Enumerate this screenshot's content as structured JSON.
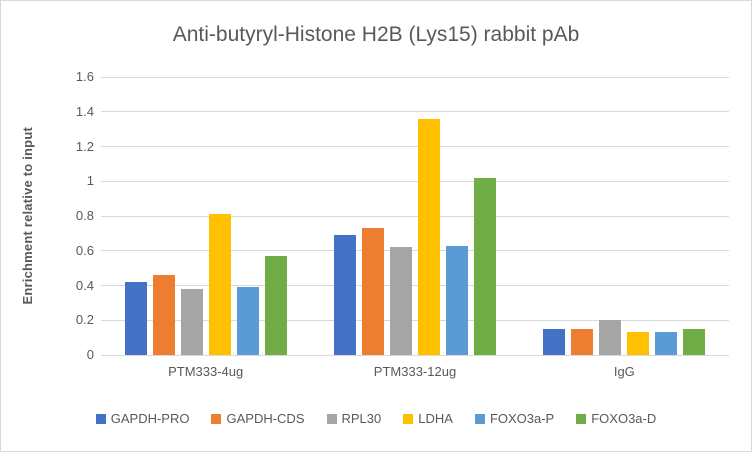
{
  "chart_data": {
    "type": "bar",
    "title": "Anti-butyryl-Histone H2B (Lys15) rabbit pAb",
    "xlabel": "",
    "ylabel": "Enrichment relative to input",
    "categories": [
      "PTM333-4ug",
      "PTM333-12ug",
      "IgG"
    ],
    "series": [
      {
        "name": "GAPDH-PRO",
        "color": "#4472C4",
        "values": [
          0.42,
          0.69,
          0.15
        ]
      },
      {
        "name": "GAPDH-CDS",
        "color": "#ED7D31",
        "values": [
          0.46,
          0.73,
          0.15
        ]
      },
      {
        "name": "RPL30",
        "color": "#A5A5A5",
        "values": [
          0.38,
          0.62,
          0.2
        ]
      },
      {
        "name": "LDHA",
        "color": "#FFC000",
        "values": [
          0.81,
          1.36,
          0.13
        ]
      },
      {
        "name": "FOXO3a-P",
        "color": "#5B9BD5",
        "values": [
          0.39,
          0.63,
          0.13
        ]
      },
      {
        "name": "FOXO3a-D",
        "color": "#70AD47",
        "values": [
          0.57,
          1.02,
          0.15
        ]
      }
    ],
    "ylim": [
      0,
      1.6
    ],
    "ytick_step": 0.2,
    "ytick_labels": [
      "0",
      "0.2",
      "0.4",
      "0.6",
      "0.8",
      "1",
      "1.2",
      "1.4",
      "1.6"
    ],
    "grid": true,
    "gridline_color": "#D9D9D9",
    "text_color": "#595959",
    "legend_position": "bottom",
    "background_color": "#FFFFFF",
    "border_color": "#D9D9D9"
  }
}
